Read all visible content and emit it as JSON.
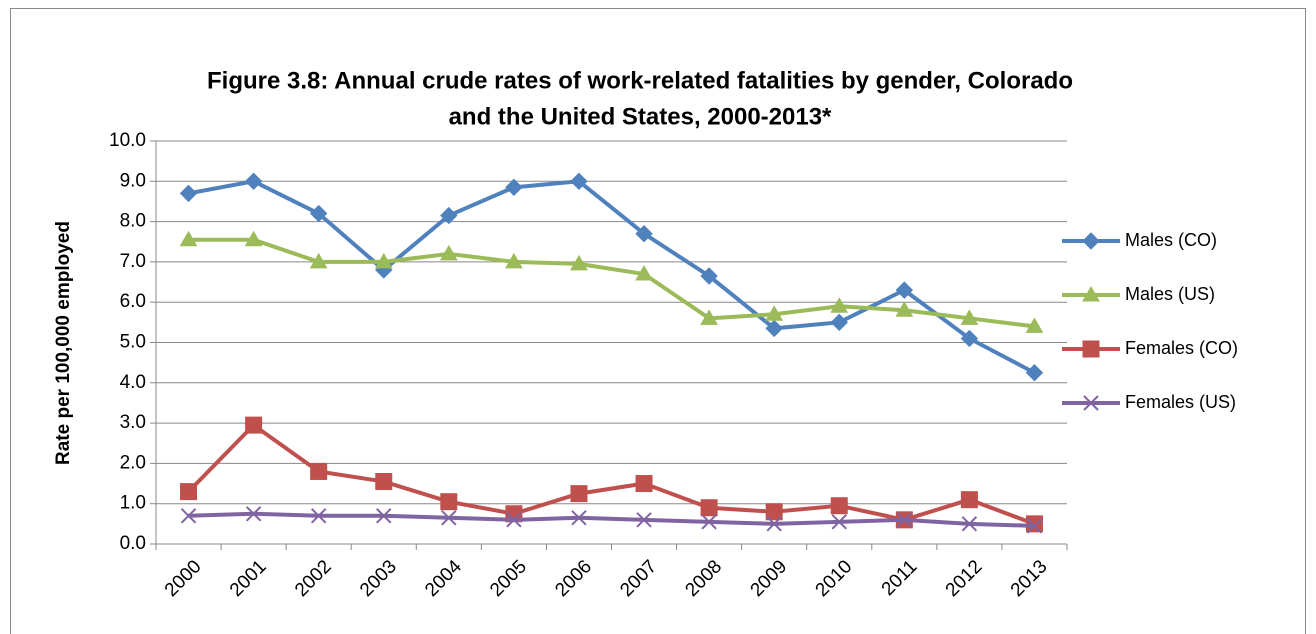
{
  "chart_data": {
    "type": "line",
    "title": [
      "Figure 3.8:  Annual crude rates of work-related fatalities by gender, Colorado",
      "and the United States, 2000-2013*"
    ],
    "y_label": "Rate per 100,000 employed",
    "categories": [
      "2000",
      "2001",
      "2002",
      "2003",
      "2004",
      "2005",
      "2006",
      "2007",
      "2008",
      "2009",
      "2010",
      "2011",
      "2012",
      "2013"
    ],
    "series": [
      {
        "name": "Males (CO)",
        "color": "#4f81bd",
        "marker": "diamond",
        "values": [
          8.7,
          9.0,
          8.2,
          6.8,
          8.15,
          8.85,
          9.0,
          7.7,
          6.65,
          5.35,
          5.5,
          6.3,
          5.1,
          4.25
        ]
      },
      {
        "name": "Males (US)",
        "color": "#9bbb59",
        "marker": "triangle",
        "values": [
          7.55,
          7.55,
          7.0,
          7.0,
          7.2,
          7.0,
          6.95,
          6.7,
          5.6,
          5.7,
          5.9,
          5.8,
          5.6,
          5.4
        ]
      },
      {
        "name": "Females (CO)",
        "color": "#c0504d",
        "marker": "square",
        "values": [
          1.3,
          2.95,
          1.8,
          1.55,
          1.05,
          0.75,
          1.25,
          1.5,
          0.9,
          0.8,
          0.95,
          0.6,
          1.1,
          0.5
        ]
      },
      {
        "name": "Females (US)",
        "color": "#8064a2",
        "marker": "x",
        "values": [
          0.7,
          0.75,
          0.7,
          0.7,
          0.65,
          0.6,
          0.65,
          0.6,
          0.55,
          0.5,
          0.55,
          0.6,
          0.5,
          0.45
        ]
      }
    ],
    "ylim": [
      0,
      10
    ],
    "yticks": [
      {
        "value": 0,
        "label": "0.0"
      },
      {
        "value": 1,
        "label": "1.0"
      },
      {
        "value": 2,
        "label": "2.0"
      },
      {
        "value": 3,
        "label": "3.0"
      },
      {
        "value": 4,
        "label": "4.0"
      },
      {
        "value": 5,
        "label": "5.0"
      },
      {
        "value": 6,
        "label": "6.0"
      },
      {
        "value": 7,
        "label": "7.0"
      },
      {
        "value": 8,
        "label": "8.0"
      },
      {
        "value": 9,
        "label": "9.0"
      },
      {
        "value": 10,
        "label": "10.0"
      }
    ],
    "grid": true,
    "legend": "right"
  }
}
